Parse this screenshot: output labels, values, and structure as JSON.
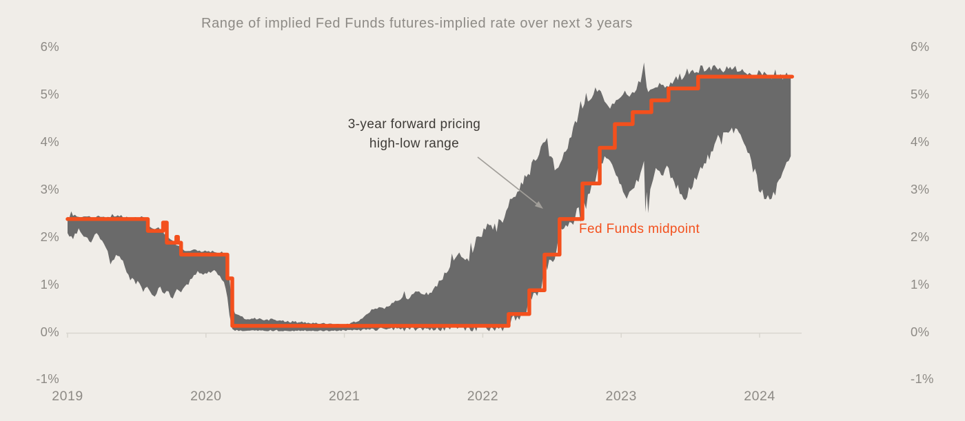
{
  "title": "Range of implied Fed Funds futures-implied rate over next 3 years",
  "annotations": {
    "band_label_line1": "3-year forward pricing",
    "band_label_line2": "high-low range",
    "line_label": "Fed Funds midpoint"
  },
  "colors": {
    "background": "#F0EDE8",
    "band": "#6A6A6A",
    "line": "#F3501D",
    "axis_text": "#8D8A85",
    "annotation_text": "#3E3B37",
    "axis_line": "#D9D6CF",
    "arrow": "#A19E99"
  },
  "chart_data": {
    "type": "area",
    "title": "Range of implied Fed Funds futures-implied rate over next 3 years",
    "xlabel": "",
    "ylabel": "",
    "grid": false,
    "legend_position": "inline-annotations",
    "y_axis": {
      "unit": "%",
      "range": [
        -1,
        6
      ],
      "tick_values": [
        6,
        5,
        4,
        3,
        2,
        1,
        0,
        -1
      ],
      "tick_labels": [
        "6%",
        "5%",
        "4%",
        "3%",
        "2%",
        "1%",
        "0%",
        "-1%"
      ],
      "shown_on_both_sides": true
    },
    "x_axis": {
      "range": [
        2019.0,
        2024.3
      ],
      "tick_values": [
        2019,
        2020,
        2021,
        2022,
        2023,
        2024
      ],
      "tick_labels": [
        "2019",
        "2020",
        "2021",
        "2022",
        "2023",
        "2024"
      ]
    },
    "series": [
      {
        "name": "3-year forward pricing high-low range",
        "type": "band",
        "unit": "percent",
        "points_format": [
          "year_decimal",
          "low",
          "high"
        ],
        "points": [
          [
            2019.0,
            2.08,
            2.42
          ],
          [
            2019.04,
            1.95,
            2.44
          ],
          [
            2019.08,
            2.18,
            2.42
          ],
          [
            2019.13,
            2.0,
            2.43
          ],
          [
            2019.17,
            1.88,
            2.41
          ],
          [
            2019.21,
            2.08,
            2.43
          ],
          [
            2019.25,
            1.92,
            2.42
          ],
          [
            2019.29,
            1.7,
            2.42
          ],
          [
            2019.31,
            1.42,
            2.41
          ],
          [
            2019.35,
            1.62,
            2.43
          ],
          [
            2019.4,
            1.5,
            2.41
          ],
          [
            2019.44,
            1.2,
            2.4
          ],
          [
            2019.48,
            1.1,
            2.41
          ],
          [
            2019.52,
            1.02,
            2.4
          ],
          [
            2019.56,
            0.92,
            2.39
          ],
          [
            2019.59,
            0.88,
            2.22
          ],
          [
            2019.61,
            0.78,
            2.18
          ],
          [
            2019.63,
            0.74,
            2.16
          ],
          [
            2019.67,
            0.95,
            2.15
          ],
          [
            2019.7,
            0.8,
            2.05
          ],
          [
            2019.73,
            0.85,
            1.98
          ],
          [
            2019.76,
            0.7,
            1.92
          ],
          [
            2019.79,
            0.9,
            1.82
          ],
          [
            2019.82,
            0.83,
            1.73
          ],
          [
            2019.86,
            1.0,
            1.7
          ],
          [
            2019.9,
            1.12,
            1.72
          ],
          [
            2019.94,
            1.28,
            1.7
          ],
          [
            2019.98,
            1.2,
            1.69
          ],
          [
            2020.02,
            1.27,
            1.7
          ],
          [
            2020.06,
            1.3,
            1.68
          ],
          [
            2020.1,
            1.18,
            1.66
          ],
          [
            2020.13,
            1.05,
            1.63
          ],
          [
            2020.155,
            0.72,
            1.55
          ],
          [
            2020.17,
            0.35,
            1.1
          ],
          [
            2020.19,
            0.06,
            0.55
          ],
          [
            2020.21,
            0.02,
            0.38
          ],
          [
            2020.25,
            0.03,
            0.33
          ],
          [
            2020.29,
            0.02,
            0.26
          ],
          [
            2020.33,
            0.03,
            0.28
          ],
          [
            2020.42,
            0.02,
            0.24
          ],
          [
            2020.5,
            0.03,
            0.25
          ],
          [
            2020.58,
            0.02,
            0.21
          ],
          [
            2020.67,
            0.03,
            0.2
          ],
          [
            2020.75,
            0.02,
            0.18
          ],
          [
            2020.83,
            0.03,
            0.17
          ],
          [
            2020.92,
            0.02,
            0.15
          ],
          [
            2021.0,
            0.03,
            0.13
          ],
          [
            2021.08,
            0.04,
            0.2
          ],
          [
            2021.13,
            0.05,
            0.28
          ],
          [
            2021.17,
            0.06,
            0.38
          ],
          [
            2021.21,
            0.06,
            0.47
          ],
          [
            2021.25,
            0.07,
            0.52
          ],
          [
            2021.29,
            0.06,
            0.48
          ],
          [
            2021.33,
            0.07,
            0.55
          ],
          [
            2021.38,
            0.07,
            0.65
          ],
          [
            2021.42,
            0.08,
            0.73
          ],
          [
            2021.46,
            0.08,
            0.68
          ],
          [
            2021.5,
            0.08,
            0.8
          ],
          [
            2021.54,
            0.08,
            0.85
          ],
          [
            2021.58,
            0.08,
            0.78
          ],
          [
            2021.63,
            0.08,
            0.82
          ],
          [
            2021.67,
            0.09,
            0.95
          ],
          [
            2021.71,
            0.09,
            1.1
          ],
          [
            2021.75,
            0.09,
            1.28
          ],
          [
            2021.79,
            0.1,
            1.5
          ],
          [
            2021.83,
            0.1,
            1.67
          ],
          [
            2021.86,
            0.1,
            1.55
          ],
          [
            2021.9,
            0.1,
            1.48
          ],
          [
            2021.94,
            0.1,
            1.8
          ],
          [
            2021.98,
            0.1,
            2.0
          ],
          [
            2022.02,
            0.1,
            2.15
          ],
          [
            2022.06,
            0.1,
            2.25
          ],
          [
            2022.1,
            0.1,
            2.1
          ],
          [
            2022.13,
            0.1,
            2.35
          ],
          [
            2022.17,
            0.12,
            2.55
          ],
          [
            2022.21,
            0.3,
            2.8
          ],
          [
            2022.25,
            0.32,
            2.95
          ],
          [
            2022.29,
            0.33,
            3.1
          ],
          [
            2022.34,
            0.8,
            3.3
          ],
          [
            2022.38,
            0.82,
            3.6
          ],
          [
            2022.42,
            0.83,
            3.9
          ],
          [
            2022.45,
            1.5,
            4.0
          ],
          [
            2022.48,
            1.52,
            3.7
          ],
          [
            2022.52,
            1.53,
            3.4
          ],
          [
            2022.56,
            2.2,
            3.55
          ],
          [
            2022.6,
            2.25,
            3.8
          ],
          [
            2022.64,
            2.3,
            4.1
          ],
          [
            2022.68,
            2.6,
            4.4
          ],
          [
            2022.72,
            2.7,
            4.7
          ],
          [
            2022.76,
            2.9,
            4.85
          ],
          [
            2022.8,
            3.1,
            5.0
          ],
          [
            2022.84,
            3.55,
            5.1
          ],
          [
            2022.88,
            3.7,
            4.85
          ],
          [
            2022.92,
            3.6,
            4.7
          ],
          [
            2022.95,
            3.4,
            4.8
          ],
          [
            2023.0,
            3.1,
            4.95
          ],
          [
            2023.04,
            2.8,
            5.0
          ],
          [
            2023.06,
            2.95,
            4.95
          ],
          [
            2023.08,
            3.0,
            5.05
          ],
          [
            2023.11,
            3.2,
            5.1
          ],
          [
            2023.14,
            3.35,
            5.25
          ],
          [
            2023.165,
            3.6,
            5.67
          ],
          [
            2023.175,
            2.52,
            5.4
          ],
          [
            2023.185,
            2.95,
            5.15
          ],
          [
            2023.195,
            2.5,
            5.05
          ],
          [
            2023.21,
            3.0,
            5.1
          ],
          [
            2023.23,
            3.2,
            5.12
          ],
          [
            2023.25,
            3.45,
            5.15
          ],
          [
            2023.29,
            3.3,
            5.2
          ],
          [
            2023.33,
            3.5,
            5.18
          ],
          [
            2023.37,
            3.25,
            5.22
          ],
          [
            2023.41,
            3.1,
            5.3
          ],
          [
            2023.45,
            2.8,
            5.35
          ],
          [
            2023.49,
            3.05,
            5.42
          ],
          [
            2023.53,
            3.25,
            5.45
          ],
          [
            2023.56,
            3.35,
            5.45
          ],
          [
            2023.6,
            3.55,
            5.48
          ],
          [
            2023.65,
            3.8,
            5.5
          ],
          [
            2023.7,
            4.15,
            5.52
          ],
          [
            2023.75,
            4.2,
            5.5
          ],
          [
            2023.8,
            4.3,
            5.52
          ],
          [
            2023.85,
            4.2,
            5.48
          ],
          [
            2023.9,
            3.9,
            5.45
          ],
          [
            2023.94,
            3.6,
            5.42
          ],
          [
            2023.98,
            3.3,
            5.4
          ],
          [
            2024.02,
            3.0,
            5.4
          ],
          [
            2024.06,
            2.88,
            5.4
          ],
          [
            2024.1,
            2.95,
            5.38
          ],
          [
            2024.14,
            3.2,
            5.4
          ],
          [
            2024.18,
            3.45,
            5.38
          ],
          [
            2024.21,
            3.6,
            5.36
          ],
          [
            2024.225,
            3.7,
            5.36
          ]
        ]
      },
      {
        "name": "Fed Funds midpoint",
        "type": "step",
        "unit": "percent",
        "points_format": [
          "year_decimal_of_change",
          "midpoint_rate"
        ],
        "points": [
          [
            2019.0,
            2.375
          ],
          [
            2019.58,
            2.125
          ],
          [
            2019.69,
            2.3
          ],
          [
            2019.717,
            1.875
          ],
          [
            2019.786,
            2.0
          ],
          [
            2019.798,
            1.875
          ],
          [
            2019.82,
            1.625
          ],
          [
            2020.155,
            1.125
          ],
          [
            2020.19,
            0.125
          ],
          [
            2022.187,
            0.375
          ],
          [
            2022.336,
            0.875
          ],
          [
            2022.446,
            1.625
          ],
          [
            2022.555,
            2.375
          ],
          [
            2022.72,
            3.125
          ],
          [
            2022.845,
            3.875
          ],
          [
            2022.954,
            4.375
          ],
          [
            2023.083,
            4.625
          ],
          [
            2023.218,
            4.875
          ],
          [
            2023.342,
            5.125
          ],
          [
            2023.556,
            5.375
          ]
        ],
        "end_t": 2024.235,
        "final_value": 5.375
      }
    ]
  }
}
